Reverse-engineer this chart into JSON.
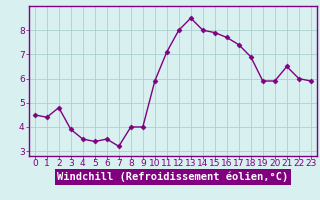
{
  "x": [
    0,
    1,
    2,
    3,
    4,
    5,
    6,
    7,
    8,
    9,
    10,
    11,
    12,
    13,
    14,
    15,
    16,
    17,
    18,
    19,
    20,
    21,
    22,
    23
  ],
  "y": [
    4.5,
    4.4,
    4.8,
    3.9,
    3.5,
    3.4,
    3.5,
    3.2,
    4.0,
    4.0,
    5.9,
    7.1,
    8.0,
    8.5,
    8.0,
    7.9,
    7.7,
    7.4,
    6.9,
    5.9,
    5.9,
    6.5,
    6.0,
    5.9
  ],
  "line_color": "#800080",
  "marker": "D",
  "marker_size": 2.5,
  "line_width": 1.0,
  "xlabel": "Windchill (Refroidissement éolien,°C)",
  "ylim": [
    2.8,
    9.0
  ],
  "xlim": [
    -0.5,
    23.5
  ],
  "yticks": [
    3,
    4,
    5,
    6,
    7,
    8
  ],
  "xticks": [
    0,
    1,
    2,
    3,
    4,
    5,
    6,
    7,
    8,
    9,
    10,
    11,
    12,
    13,
    14,
    15,
    16,
    17,
    18,
    19,
    20,
    21,
    22,
    23
  ],
  "grid_color": "#aacfcf",
  "bg_color": "#d8f0f0",
  "spine_color": "#800080",
  "tick_label_fontsize": 6.5,
  "tick_color": "#800080",
  "xlabel_bg_color": "#800080",
  "xlabel_text_color": "#ffffff",
  "xlabel_fontsize": 7.5
}
